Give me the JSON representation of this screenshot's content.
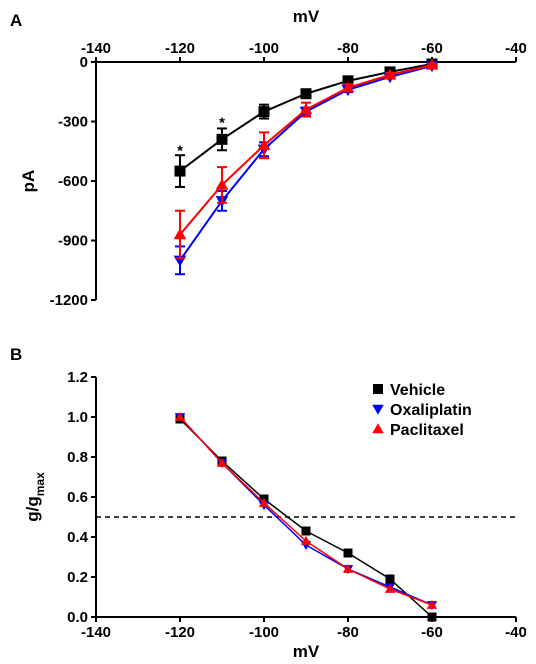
{
  "chart_data": [
    {
      "panel": "A",
      "type": "line",
      "xlabel": "mV",
      "ylabel": "pA",
      "xlim": [
        -140,
        -40
      ],
      "ylim": [
        -1200,
        0
      ],
      "x_axis_position": "top",
      "xticks": [
        -140,
        -120,
        -100,
        -80,
        -60,
        -40
      ],
      "yticks": [
        0,
        -300,
        -600,
        -900,
        -1200
      ],
      "x": [
        -120,
        -110,
        -100,
        -90,
        -80,
        -70,
        -60
      ],
      "series": [
        {
          "name": "Vehicle",
          "marker": "square",
          "color": "#000000",
          "values": [
            -550,
            -390,
            -250,
            -160,
            -95,
            -50,
            -10
          ],
          "err": [
            80,
            55,
            35,
            20,
            15,
            10,
            5
          ]
        },
        {
          "name": "Oxaliplatin",
          "marker": "triangle-down",
          "color": "#0000ff",
          "values": [
            -1000,
            -700,
            -440,
            -250,
            -140,
            -75,
            -20
          ],
          "err": [
            70,
            50,
            35,
            20,
            12,
            8,
            5
          ]
        },
        {
          "name": "Paclitaxel",
          "marker": "triangle-up",
          "color": "#ff0000",
          "values": [
            -870,
            -620,
            -420,
            -240,
            -130,
            -65,
            -15
          ],
          "err": [
            120,
            90,
            65,
            35,
            18,
            10,
            5
          ]
        }
      ],
      "annotations": [
        {
          "text": "*",
          "x": -120,
          "y": -410
        },
        {
          "text": "*",
          "x": -110,
          "y": -270
        }
      ]
    },
    {
      "panel": "B",
      "type": "line",
      "xlabel": "mV",
      "ylabel": "g/g",
      "ylabel_sub": "max",
      "xlim": [
        -140,
        -40
      ],
      "ylim": [
        0,
        1.2
      ],
      "xticks": [
        -140,
        -120,
        -100,
        -80,
        -60,
        -40
      ],
      "yticks": [
        0.0,
        0.2,
        0.4,
        0.6,
        0.8,
        1.0,
        1.2
      ],
      "reference_line": {
        "y": 0.5,
        "style": "dashed"
      },
      "legend_position": "top-right",
      "x": [
        -120,
        -110,
        -100,
        -90,
        -80,
        -70,
        -60
      ],
      "series": [
        {
          "name": "Vehicle",
          "marker": "square",
          "color": "#000000",
          "values": [
            0.99,
            0.78,
            0.59,
            0.43,
            0.32,
            0.19,
            0.0
          ]
        },
        {
          "name": "Oxaliplatin",
          "marker": "triangle-down",
          "color": "#0000ff",
          "values": [
            1.0,
            0.77,
            0.56,
            0.36,
            0.24,
            0.15,
            0.06
          ]
        },
        {
          "name": "Paclitaxel",
          "marker": "triangle-up",
          "color": "#ff0000",
          "values": [
            1.0,
            0.77,
            0.57,
            0.38,
            0.24,
            0.14,
            0.06
          ]
        }
      ]
    }
  ]
}
